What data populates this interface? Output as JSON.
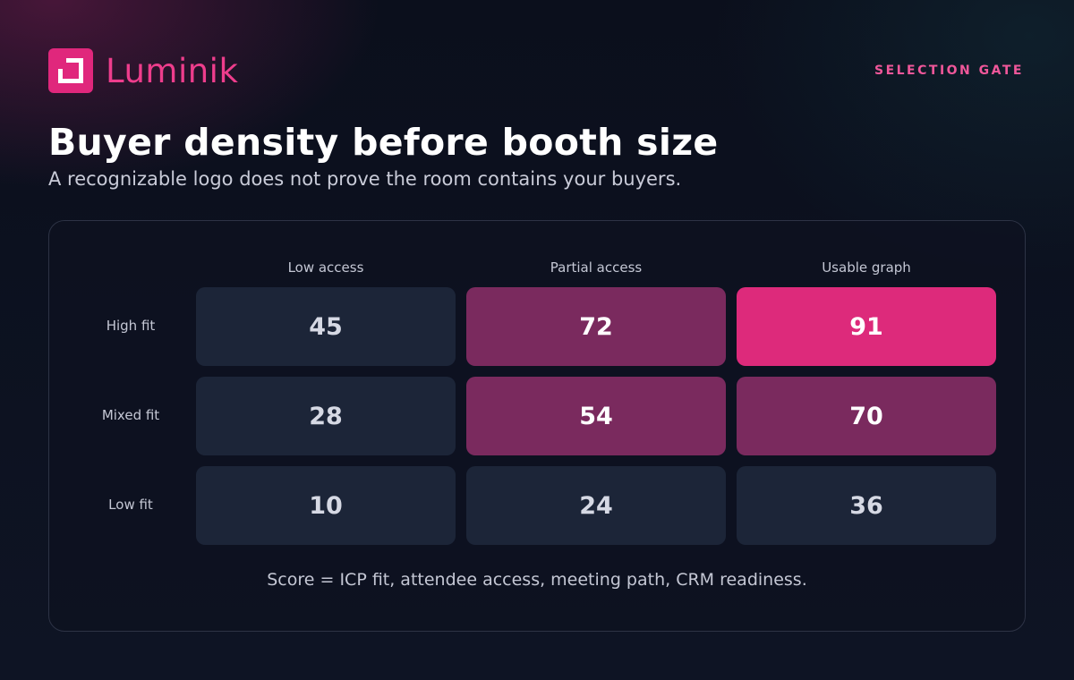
{
  "brand": {
    "name": "Luminik",
    "tag": "SELECTION GATE",
    "accent": "#e0277c"
  },
  "header": {
    "title": "Buyer density before booth size",
    "subtitle": "A recognizable logo does not prove the room contains your buyers."
  },
  "chart_data": {
    "type": "heatmap",
    "columns": [
      "Low access",
      "Partial access",
      "Usable graph"
    ],
    "rows": [
      "High fit",
      "Mixed fit",
      "Low fit"
    ],
    "values": [
      [
        45,
        72,
        91
      ],
      [
        28,
        54,
        70
      ],
      [
        10,
        24,
        36
      ]
    ],
    "colors": {
      "low": "#1c2538",
      "mid": "#7a2a5e",
      "high": "#dd2a7b"
    },
    "footnote": "Score = ICP fit, attendee access, meeting path, CRM readiness."
  }
}
